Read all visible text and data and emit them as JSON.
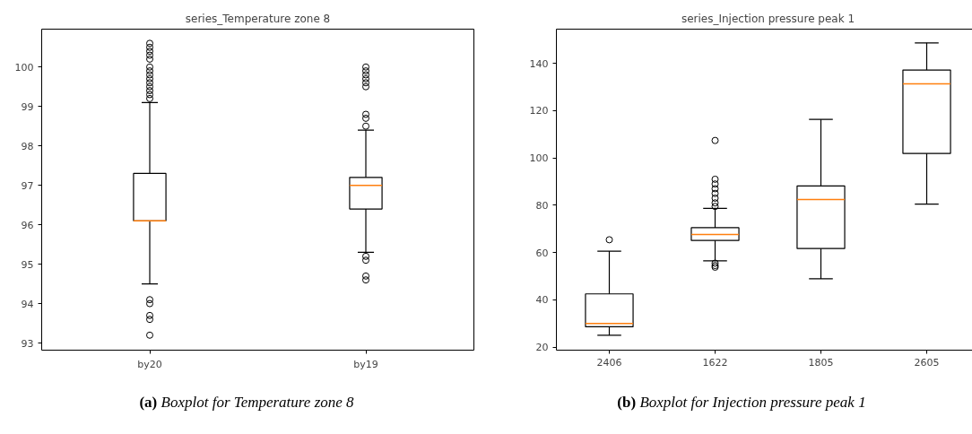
{
  "chart_data": [
    {
      "type": "box",
      "title": "series_Temperature zone 8",
      "categories": [
        "by20",
        "by19"
      ],
      "ylim": [
        92.82,
        100.96
      ],
      "yticks": [
        93,
        94,
        95,
        96,
        97,
        98,
        99,
        100
      ],
      "grid": false,
      "annotations": [
        "(a) Boxplot for Temperature zone 8"
      ],
      "series": [
        {
          "color": "#000000",
          "boxes": [
            {
              "low": 94.5,
              "q1": 96.1,
              "median": 96.1,
              "q3": 97.3,
              "high": 99.1,
              "outliers": [
                99.2,
                99.3,
                99.4,
                99.5,
                99.6,
                99.7,
                99.8,
                99.9,
                100.0,
                100.2,
                100.3,
                100.4,
                100.5,
                100.6,
                94.1,
                94.0,
                93.7,
                93.6,
                93.2
              ]
            },
            {
              "low": 95.3,
              "q1": 96.4,
              "median": 97.0,
              "q3": 97.2,
              "high": 98.4,
              "outliers": [
                98.5,
                98.7,
                98.8,
                99.5,
                99.6,
                99.7,
                99.8,
                99.9,
                100.0,
                95.2,
                95.1,
                94.7,
                94.6
              ]
            }
          ]
        }
      ]
    },
    {
      "type": "box",
      "title": "series_Injection pressure peak 1",
      "categories": [
        "2406",
        "1622",
        "1805",
        "2605"
      ],
      "ylim": [
        18.7,
        154.5
      ],
      "yticks": [
        20,
        40,
        60,
        80,
        100,
        120,
        140
      ],
      "grid": false,
      "annotations": [
        "(b) Boxplot for Injection pressure peak 1"
      ],
      "series": [
        {
          "color": "#000000",
          "boxes": [
            {
              "low": 25,
              "q1": 28.6,
              "median": 30,
              "q3": 42.5,
              "high": 60.6,
              "outliers": [
                65.4
              ]
            },
            {
              "low": 56.5,
              "q1": 65.1,
              "median": 67.6,
              "q3": 70.5,
              "high": 78.7,
              "outliers": [
                107.4,
                91,
                89,
                87,
                85,
                83,
                81,
                79.5,
                55.5,
                54.5,
                53.8
              ]
            },
            {
              "low": 48.9,
              "q1": 61.7,
              "median": 82.4,
              "q3": 88.2,
              "high": 116.3
            },
            {
              "low": 80.5,
              "q1": 101.9,
              "median": 131.4,
              "q3": 137.2,
              "high": 148.7
            }
          ]
        }
      ]
    }
  ]
}
